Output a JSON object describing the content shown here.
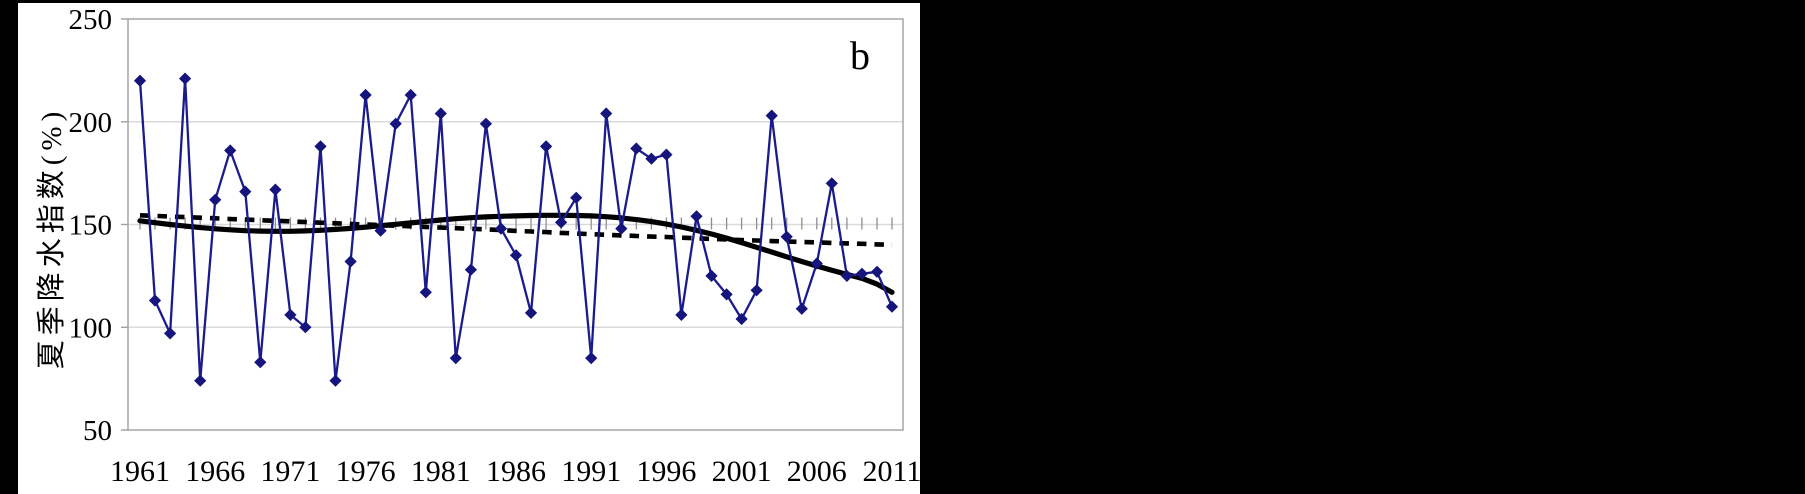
{
  "chart_data": {
    "type": "line",
    "panel_label": "b",
    "ylabel": "夏季降水指数(%)",
    "xlabel": "",
    "ylim": [
      50,
      250
    ],
    "yticks": [
      50,
      100,
      150,
      200,
      250
    ],
    "horizontal_gridlines": [
      100,
      150,
      200
    ],
    "xticks": [
      1961,
      1966,
      1971,
      1976,
      1981,
      1986,
      1991,
      1996,
      2001,
      2006,
      2011
    ],
    "legend": "none",
    "colors": {
      "annual_line": "#1b1b8e",
      "marker": "#15157d",
      "smoothed_line": "#000000",
      "trend_line": "#000000",
      "gridline": "#dadada",
      "frame": "#a0a0a0",
      "tick": "#8f8f8f",
      "background": "#000000",
      "panel_background": "#ffffff"
    },
    "years": [
      1961,
      1962,
      1963,
      1964,
      1965,
      1966,
      1967,
      1968,
      1969,
      1970,
      1971,
      1972,
      1973,
      1974,
      1975,
      1976,
      1977,
      1978,
      1979,
      1980,
      1981,
      1982,
      1983,
      1984,
      1985,
      1986,
      1987,
      1988,
      1989,
      1990,
      1991,
      1992,
      1993,
      1994,
      1995,
      1996,
      1997,
      1998,
      1999,
      2000,
      2001,
      2002,
      2003,
      2004,
      2005,
      2006,
      2007,
      2008,
      2009,
      2010,
      2011
    ],
    "series": [
      {
        "name": "annual-precipitation-index",
        "style": "line-with-diamond-markers",
        "values": [
          220,
          113,
          97,
          221,
          74,
          162,
          186,
          166,
          83,
          167,
          106,
          100,
          188,
          74,
          132,
          213,
          147,
          199,
          213,
          117,
          204,
          85,
          128,
          199,
          148,
          135,
          107,
          188,
          151,
          163,
          85,
          204,
          148,
          187,
          182,
          184,
          106,
          154,
          125,
          116,
          104,
          118,
          203,
          144,
          109,
          131,
          170,
          125,
          126,
          127,
          110
        ]
      },
      {
        "name": "smoothed-polynomial-fit",
        "style": "thick-solid",
        "values": [
          151.8,
          150.9,
          150.0,
          149.2,
          148.5,
          147.9,
          147.4,
          147.0,
          146.8,
          146.7,
          146.7,
          146.9,
          147.2,
          147.6,
          148.1,
          148.7,
          149.4,
          150.1,
          150.8,
          151.5,
          152.2,
          152.8,
          153.3,
          153.7,
          154.0,
          154.2,
          154.4,
          154.5,
          154.5,
          154.4,
          154.2,
          153.8,
          153.2,
          152.4,
          151.4,
          150.2,
          148.8,
          147.2,
          145.4,
          143.4,
          141.2,
          138.9,
          136.6,
          134.3,
          132.0,
          129.8,
          127.7,
          125.7,
          123.8,
          121.0,
          117.0
        ]
      },
      {
        "name": "linear-trend",
        "style": "thick-dashed",
        "values": [
          154.5,
          154.2,
          153.9,
          153.6,
          153.3,
          153.0,
          152.7,
          152.4,
          152.1,
          151.8,
          151.5,
          151.2,
          150.9,
          150.6,
          150.3,
          150.0,
          149.7,
          149.4,
          149.1,
          148.8,
          148.5,
          148.2,
          147.9,
          147.6,
          147.3,
          146.9,
          146.6,
          146.3,
          145.9,
          145.6,
          145.3,
          145.0,
          144.7,
          144.4,
          144.1,
          143.9,
          143.6,
          143.3,
          143.0,
          142.7,
          142.4,
          142.2,
          141.9,
          141.7,
          141.5,
          141.3,
          141.0,
          140.8,
          140.6,
          140.3,
          140.1
        ]
      }
    ]
  }
}
